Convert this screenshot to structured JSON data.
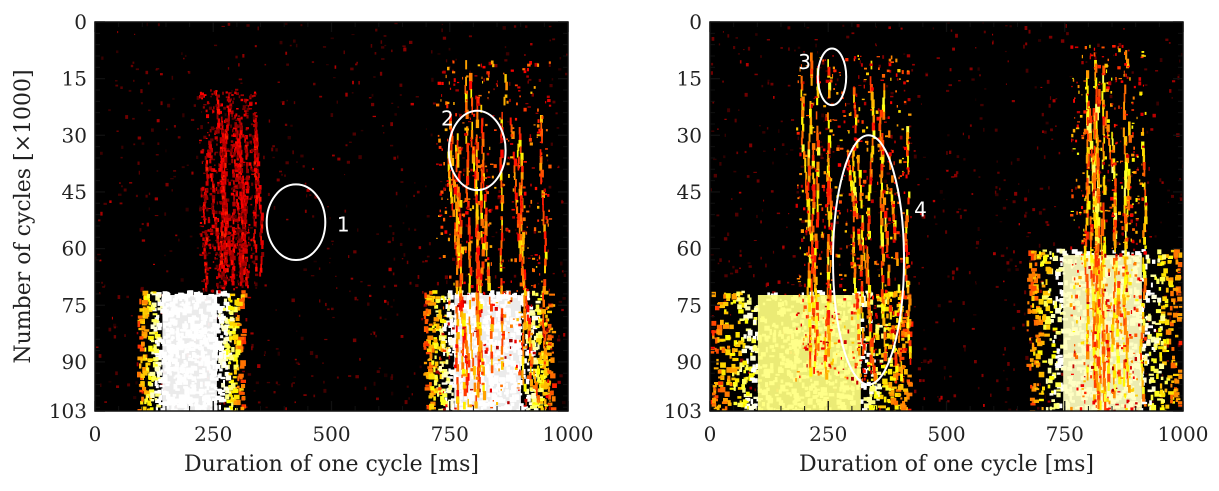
{
  "chart_data": [
    {
      "type": "heatmap",
      "xlabel": "Duration of one cycle [ms]",
      "ylabel": "Number of cycles [×1000]",
      "xlim": [
        0,
        1000
      ],
      "ylim": [
        0,
        103
      ],
      "y_inverted": true,
      "x_ticks": [
        0,
        250,
        500,
        750,
        1000
      ],
      "y_ticks": [
        0,
        15,
        30,
        45,
        60,
        75,
        90,
        103
      ],
      "colormap": "hot",
      "background_color": "#000000",
      "regions": [
        {
          "kind": "block",
          "x": [
            110,
            290
          ],
          "y": [
            71,
            103
          ],
          "intensity": 1.0
        },
        {
          "kind": "block",
          "x": [
            720,
            940
          ],
          "y": [
            71,
            103
          ],
          "intensity": 1.0
        },
        {
          "kind": "streaks",
          "x": [
            220,
            340
          ],
          "y": [
            18,
            71
          ],
          "intensity": 0.45
        },
        {
          "kind": "streaks",
          "x": [
            720,
            960
          ],
          "y": [
            10,
            103
          ],
          "intensity": 0.8
        }
      ],
      "annotations": [
        {
          "label": "1",
          "cx": 425,
          "cy": 53,
          "rx": 62,
          "ry": 10,
          "label_x": 525,
          "label_y": 54
        },
        {
          "label": "2",
          "cx": 808,
          "cy": 34,
          "rx": 60,
          "ry": 10.5,
          "label_x": 745,
          "label_y": 26
        }
      ]
    },
    {
      "type": "heatmap",
      "xlabel": "Duration of one cycle [ms]",
      "ylabel": "",
      "xlim": [
        0,
        1000
      ],
      "ylim": [
        0,
        103
      ],
      "y_inverted": true,
      "x_ticks": [
        0,
        250,
        500,
        750,
        1000
      ],
      "y_ticks": [
        0,
        15,
        30,
        45,
        60,
        75,
        90,
        103
      ],
      "colormap": "hot",
      "background_color": "#000000",
      "regions": [
        {
          "kind": "block",
          "x": [
            40,
            380
          ],
          "y": [
            71,
            103
          ],
          "intensity": 0.9
        },
        {
          "kind": "block",
          "x": [
            700,
            960
          ],
          "y": [
            60,
            103
          ],
          "intensity": 0.95
        },
        {
          "kind": "streaks",
          "x": [
            180,
            420
          ],
          "y": [
            8,
            95
          ],
          "intensity": 0.85
        },
        {
          "kind": "streaks",
          "x": [
            760,
            920
          ],
          "y": [
            6,
            103
          ],
          "intensity": 0.9
        }
      ],
      "annotations": [
        {
          "label": "3",
          "cx": 258,
          "cy": 14.5,
          "rx": 30,
          "ry": 7.5,
          "label_x": 200,
          "label_y": 11
        },
        {
          "label": "4",
          "cx": 335,
          "cy": 63,
          "rx": 75,
          "ry": 33,
          "label_x": 445,
          "label_y": 50
        }
      ]
    }
  ]
}
